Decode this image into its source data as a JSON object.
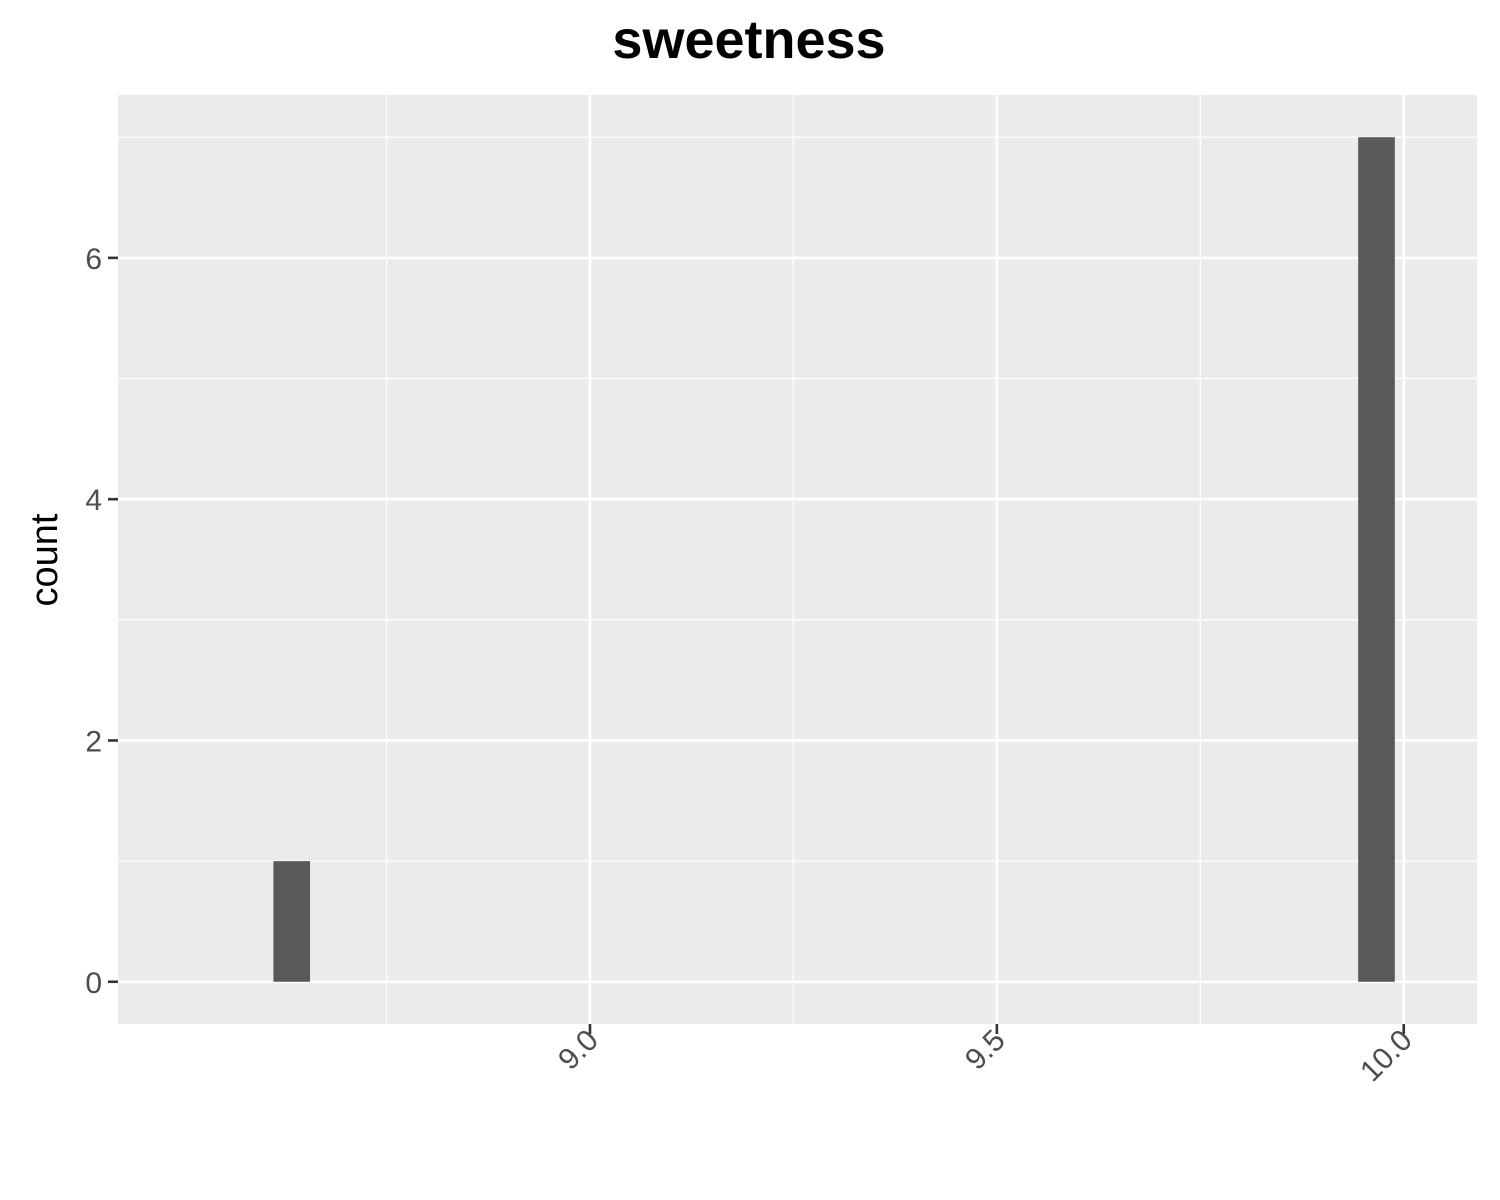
{
  "chart_data": {
    "type": "bar",
    "title": "sweetness",
    "xlabel": "",
    "ylabel": "count",
    "bars": [
      {
        "x_start": 8.611,
        "x_end": 8.656,
        "count": 1
      },
      {
        "x_start": 9.944,
        "x_end": 9.989,
        "count": 7
      }
    ],
    "xlim": [
      8.42,
      10.09
    ],
    "ylim": [
      -0.35,
      7.35
    ],
    "x_ticks": [
      9.0,
      9.5,
      10.0
    ],
    "x_tick_labels": [
      "9.0",
      "9.5",
      "10.0"
    ],
    "y_ticks": [
      0,
      2,
      4,
      6
    ],
    "y_tick_labels": [
      "0",
      "2",
      "4",
      "6"
    ],
    "bar_color": "#595959",
    "panel_background": "#ebebeb",
    "grid": true,
    "grid_color": "#ffffff"
  }
}
